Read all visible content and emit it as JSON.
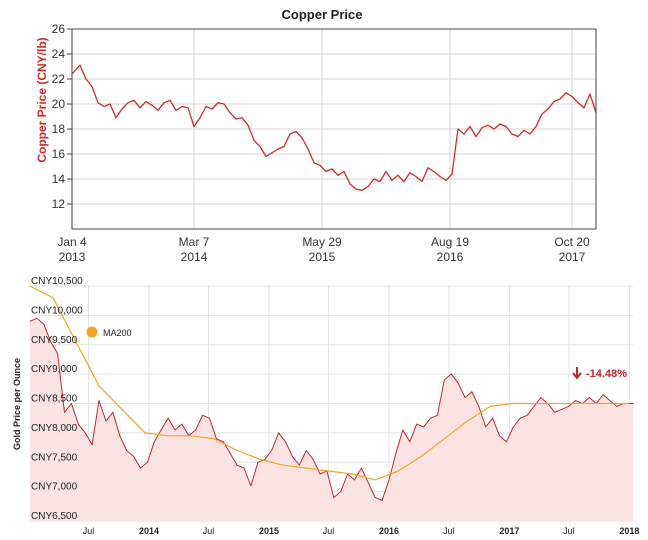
{
  "chart_data": [
    {
      "type": "line",
      "title": "Copper Price",
      "ylabel": "Copper Price (CNY/lb)",
      "xlabel": "",
      "ylim": [
        10,
        26
      ],
      "yticks": [
        12,
        14,
        16,
        18,
        20,
        22,
        24,
        26
      ],
      "xticks": [
        {
          "date": "2013-01-04",
          "line1": "Jan 4",
          "line2": "2013"
        },
        {
          "date": "2014-03-07",
          "line1": "Mar 7",
          "line2": "2014"
        },
        {
          "date": "2015-05-29",
          "line1": "May 29",
          "line2": "2015"
        },
        {
          "date": "2016-08-19",
          "line1": "Aug 19",
          "line2": "2016"
        },
        {
          "date": "2017-10-20",
          "line1": "Oct 20",
          "line2": "2017"
        }
      ],
      "xlim": [
        "2013-01-04",
        "2018-01-12"
      ],
      "grid": true,
      "color": "#d42a2a",
      "series": [
        {
          "x": [
            "2013-01-04",
            "2013-02-01",
            "2013-02-22",
            "2013-03-15",
            "2013-04-05",
            "2013-04-26",
            "2013-05-17",
            "2013-06-07",
            "2013-06-28",
            "2013-07-19",
            "2013-08-09",
            "2013-08-30",
            "2013-09-20",
            "2013-10-11",
            "2013-11-01",
            "2013-11-22",
            "2013-12-13",
            "2014-01-03",
            "2014-01-24",
            "2014-02-14",
            "2014-03-07",
            "2014-03-28",
            "2014-04-18",
            "2014-05-09",
            "2014-05-30",
            "2014-06-20",
            "2014-07-11",
            "2014-08-01",
            "2014-08-22",
            "2014-09-12",
            "2014-10-03",
            "2014-10-24",
            "2014-11-14",
            "2014-12-05",
            "2014-12-26",
            "2015-01-16",
            "2015-02-06",
            "2015-02-27",
            "2015-03-20",
            "2015-04-10",
            "2015-05-01",
            "2015-05-22",
            "2015-06-12",
            "2015-07-03",
            "2015-07-24",
            "2015-08-14",
            "2015-09-04",
            "2015-09-25",
            "2015-10-16",
            "2015-11-06",
            "2015-11-27",
            "2015-12-18",
            "2016-01-08",
            "2016-01-29",
            "2016-02-19",
            "2016-03-11",
            "2016-04-01",
            "2016-04-22",
            "2016-05-13",
            "2016-06-03",
            "2016-06-24",
            "2016-07-15",
            "2016-08-05",
            "2016-08-26",
            "2016-09-16",
            "2016-10-07",
            "2016-10-28",
            "2016-11-18",
            "2016-12-09",
            "2016-12-30",
            "2017-01-20",
            "2017-02-10",
            "2017-03-03",
            "2017-03-24",
            "2017-04-14",
            "2017-05-05",
            "2017-05-26",
            "2017-06-16",
            "2017-07-07",
            "2017-07-28",
            "2017-08-18",
            "2017-09-08",
            "2017-09-29",
            "2017-10-20",
            "2017-11-10",
            "2017-12-01",
            "2017-12-22",
            "2018-01-12"
          ],
          "values": [
            22.4,
            23.1,
            22.0,
            21.4,
            20.1,
            19.8,
            20.0,
            18.9,
            19.6,
            20.1,
            20.3,
            19.7,
            20.2,
            19.9,
            19.5,
            20.1,
            20.3,
            19.5,
            19.8,
            19.7,
            18.2,
            18.9,
            19.8,
            19.6,
            20.1,
            20.0,
            19.3,
            18.8,
            18.9,
            18.3,
            17.1,
            16.6,
            15.8,
            16.1,
            16.4,
            16.6,
            17.6,
            17.8,
            17.3,
            16.4,
            15.3,
            15.1,
            14.6,
            14.8,
            14.3,
            14.6,
            13.6,
            13.2,
            13.1,
            13.4,
            14.0,
            13.8,
            14.6,
            13.9,
            14.3,
            13.8,
            14.5,
            14.2,
            13.8,
            14.9,
            14.6,
            14.2,
            13.9,
            14.4,
            18.0,
            17.6,
            18.2,
            17.4,
            18.1,
            18.3,
            18.0,
            18.4,
            18.2,
            17.6,
            17.4,
            17.9,
            17.6,
            18.2,
            19.2,
            19.6,
            20.2,
            20.4,
            20.9,
            20.6,
            20.1,
            19.7,
            20.8,
            19.3
          ]
        }
      ]
    },
    {
      "type": "area",
      "ylabel": "Gold Price per Ounce",
      "xlabel": "",
      "ylim": [
        6500,
        10500
      ],
      "yticks": [
        "CNY6,500",
        "CNY7,000",
        "CNY7,500",
        "CNY8,000",
        "CNY8,500",
        "CNY9,000",
        "CNY9,500",
        "CNY10,000",
        "CNY10,500"
      ],
      "ytick_values": [
        6500,
        7000,
        7500,
        8000,
        8500,
        9000,
        9500,
        10000,
        10500
      ],
      "xticks": [
        {
          "date": "2013-07-01",
          "label": "Jul",
          "bold": false
        },
        {
          "date": "2014-01-01",
          "label": "2014",
          "bold": true
        },
        {
          "date": "2014-07-01",
          "label": "Jul",
          "bold": false
        },
        {
          "date": "2015-01-01",
          "label": "2015",
          "bold": true
        },
        {
          "date": "2015-07-01",
          "label": "Jul",
          "bold": false
        },
        {
          "date": "2016-01-01",
          "label": "2016",
          "bold": true
        },
        {
          "date": "2016-07-01",
          "label": "Jul",
          "bold": false
        },
        {
          "date": "2017-01-01",
          "label": "2017",
          "bold": true
        },
        {
          "date": "2017-07-01",
          "label": "Jul",
          "bold": false
        },
        {
          "date": "2018-01-01",
          "label": "2018",
          "bold": true
        }
      ],
      "xlim": [
        "2013-01-04",
        "2018-01-12"
      ],
      "grid": true,
      "legend": {
        "label": "MA200",
        "color": "#f5a623",
        "placement": "top-left"
      },
      "change_label": "-14.48%",
      "series": [
        {
          "color": "#c0282e",
          "fill": "#fbe3e3",
          "x": [
            "2013-01-04",
            "2013-01-25",
            "2013-02-15",
            "2013-03-08",
            "2013-03-29",
            "2013-04-19",
            "2013-05-10",
            "2013-05-31",
            "2013-06-21",
            "2013-07-12",
            "2013-08-02",
            "2013-08-23",
            "2013-09-13",
            "2013-10-04",
            "2013-10-25",
            "2013-11-15",
            "2013-12-06",
            "2013-12-27",
            "2014-01-17",
            "2014-02-07",
            "2014-02-28",
            "2014-03-21",
            "2014-04-11",
            "2014-05-02",
            "2014-05-23",
            "2014-06-13",
            "2014-07-04",
            "2014-07-25",
            "2014-08-15",
            "2014-09-05",
            "2014-09-26",
            "2014-10-17",
            "2014-11-07",
            "2014-11-28",
            "2014-12-19",
            "2015-01-09",
            "2015-01-30",
            "2015-02-20",
            "2015-03-13",
            "2015-04-03",
            "2015-04-24",
            "2015-05-15",
            "2015-06-05",
            "2015-06-26",
            "2015-07-17",
            "2015-08-07",
            "2015-08-28",
            "2015-09-18",
            "2015-10-09",
            "2015-10-30",
            "2015-11-20",
            "2015-12-11",
            "2016-01-01",
            "2016-01-22",
            "2016-02-12",
            "2016-03-04",
            "2016-03-25",
            "2016-04-15",
            "2016-05-06",
            "2016-05-27",
            "2016-06-17",
            "2016-07-08",
            "2016-07-29",
            "2016-08-19",
            "2016-09-09",
            "2016-09-30",
            "2016-10-21",
            "2016-11-11",
            "2016-12-02",
            "2016-12-23",
            "2017-01-13",
            "2017-02-03",
            "2017-02-24",
            "2017-03-17",
            "2017-04-07",
            "2017-04-28",
            "2017-05-19",
            "2017-06-09",
            "2017-06-30",
            "2017-07-21",
            "2017-08-11",
            "2017-09-01",
            "2017-09-22",
            "2017-10-13",
            "2017-11-03",
            "2017-11-24",
            "2017-12-15",
            "2018-01-12"
          ],
          "values": [
            9900,
            9950,
            9850,
            9550,
            9350,
            8350,
            8500,
            8150,
            8000,
            7800,
            8550,
            8200,
            8350,
            7950,
            7700,
            7600,
            7400,
            7500,
            7850,
            8050,
            8250,
            8050,
            8150,
            7950,
            8050,
            8300,
            8250,
            7900,
            7850,
            7650,
            7450,
            7400,
            7100,
            7500,
            7550,
            7700,
            8000,
            7850,
            7600,
            7450,
            7700,
            7550,
            7300,
            7350,
            6900,
            7000,
            7300,
            7200,
            7400,
            7150,
            6900,
            6850,
            7200,
            7650,
            8050,
            7850,
            8150,
            8100,
            8250,
            8300,
            8900,
            9000,
            8850,
            8600,
            8700,
            8450,
            8100,
            8250,
            7950,
            7850,
            8100,
            8250,
            8300,
            8450,
            8600,
            8500,
            8350,
            8400,
            8450,
            8550,
            8500,
            8600,
            8500,
            8650,
            8550,
            8450,
            8500,
            8500
          ]
        },
        {
          "name": "MA200",
          "color": "#f5a623",
          "x": [
            "2013-01-04",
            "2013-03-15",
            "2013-05-24",
            "2013-08-02",
            "2013-10-11",
            "2013-12-20",
            "2014-02-28",
            "2014-05-09",
            "2014-07-18",
            "2014-09-26",
            "2014-12-05",
            "2015-02-13",
            "2015-04-24",
            "2015-07-03",
            "2015-09-11",
            "2015-11-20",
            "2016-01-29",
            "2016-04-08",
            "2016-06-17",
            "2016-08-26",
            "2016-11-04",
            "2017-01-13",
            "2017-03-24",
            "2017-06-02",
            "2017-08-11",
            "2017-10-20",
            "2017-12-29"
          ],
          "values": [
            10500,
            10300,
            9550,
            8800,
            8400,
            8000,
            7950,
            7950,
            7900,
            7700,
            7550,
            7450,
            7400,
            7350,
            7300,
            7200,
            7350,
            7600,
            7900,
            8200,
            8450,
            8500,
            8500,
            8500,
            8500,
            8500,
            8500
          ]
        }
      ]
    }
  ]
}
